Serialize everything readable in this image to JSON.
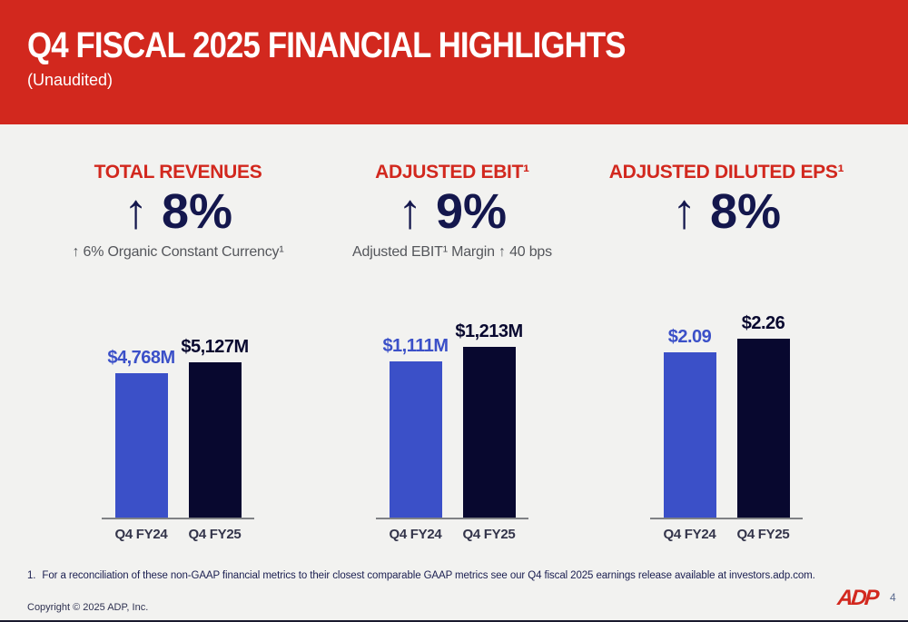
{
  "slide": {
    "title": "Q4 FISCAL 2025 FINANCIAL HIGHLIGHTS",
    "subtitle": "(Unaudited)",
    "footnote_marker": "1.",
    "footnote_text": "For a reconciliation of these non-GAAP financial metrics to their closest comparable GAAP metrics see our Q4 fiscal 2025 earnings release available at investors.adp.com.",
    "copyright": "Copyright © 2025 ADP, Inc.",
    "logo_text": "ADP",
    "page_number": "4"
  },
  "colors": {
    "header_red": "#D2281E",
    "navy_text": "#14174D",
    "blue_bar": "#3B50C8",
    "dark_navy_bar": "#08082F",
    "gray_text": "#54565B",
    "background": "#F2F2F0",
    "axis_line": "#808285"
  },
  "sections": [
    {
      "title": "TOTAL REVENUES",
      "stat": "↑ 8%",
      "subtitle": "↑ 6% Organic Constant Currency¹"
    },
    {
      "title": "ADJUSTED EBIT¹",
      "stat": "↑ 9%",
      "subtitle": "Adjusted EBIT¹ Margin ↑ 40 bps"
    },
    {
      "title": "ADJUSTED DILUTED EPS¹",
      "stat": "↑ 8%",
      "subtitle": ""
    }
  ],
  "chart_data": [
    {
      "type": "bar",
      "title": "TOTAL REVENUES",
      "categories": [
        "Q4 FY24",
        "Q4 FY25"
      ],
      "values": [
        4768,
        5127
      ],
      "value_labels": [
        "$4,768M",
        "$5,127M"
      ],
      "ylim": [
        0,
        6000
      ],
      "bar_colors": [
        "#3B50C8",
        "#08082F"
      ],
      "grid": false,
      "legend": false
    },
    {
      "type": "bar",
      "title": "ADJUSTED EBIT¹",
      "categories": [
        "Q4 FY24",
        "Q4 FY25"
      ],
      "values": [
        1111,
        1213
      ],
      "value_labels": [
        "$1,111M",
        "$1,213M"
      ],
      "ylim": [
        0,
        1290
      ],
      "bar_colors": [
        "#3B50C8",
        "#08082F"
      ],
      "grid": false,
      "legend": false
    },
    {
      "type": "bar",
      "title": "ADJUSTED DILUTED EPS¹",
      "categories": [
        "Q4 FY24",
        "Q4 FY25"
      ],
      "values": [
        2.09,
        2.26
      ],
      "value_labels": [
        "$2.09",
        "$2.26"
      ],
      "ylim": [
        0,
        2.3
      ],
      "bar_colors": [
        "#3B50C8",
        "#08082F"
      ],
      "grid": false,
      "legend": false
    }
  ]
}
